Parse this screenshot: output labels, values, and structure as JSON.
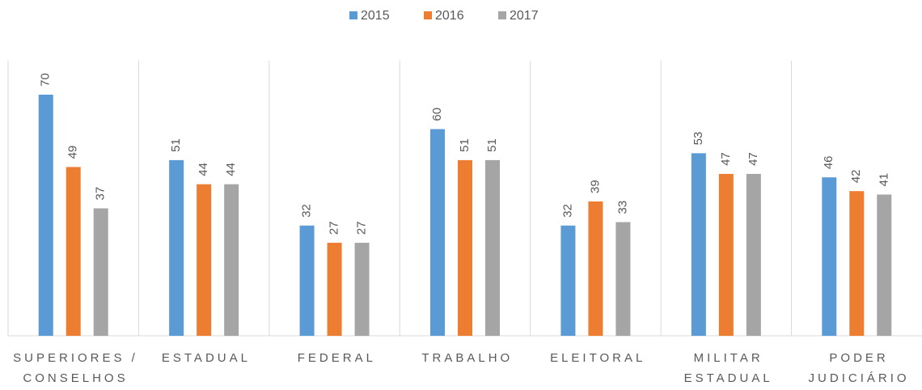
{
  "chart_data": {
    "type": "bar",
    "categories": [
      "SUPERIORES /\nCONSELHOS",
      "ESTADUAL",
      "FEDERAL",
      "TRABALHO",
      "ELEITORAL",
      "MILITAR\nESTADUAL",
      "PODER\nJUDICIÁRIO"
    ],
    "series": [
      {
        "name": "2015",
        "color": "#5b9bd5",
        "values": [
          70,
          51,
          32,
          60,
          32,
          53,
          46
        ]
      },
      {
        "name": "2016",
        "color": "#ed7d31",
        "values": [
          49,
          44,
          27,
          51,
          39,
          47,
          42
        ]
      },
      {
        "name": "2017",
        "color": "#a5a5a5",
        "values": [
          37,
          44,
          27,
          51,
          33,
          47,
          41
        ]
      }
    ],
    "legend": "top"
  }
}
